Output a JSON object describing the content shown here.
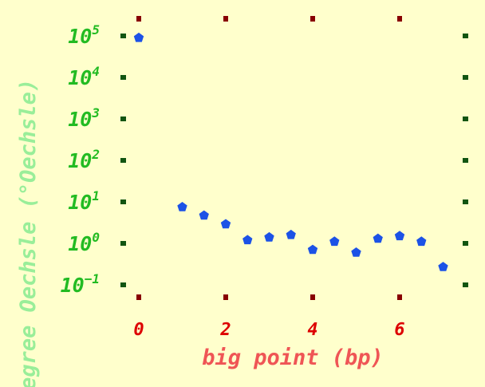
{
  "chart_data": {
    "type": "scatter",
    "title": "",
    "xlabel": "big point (bp)",
    "ylabel": "degree Oechsle (°Oechsle)",
    "x_ticks": [
      "0",
      "2",
      "4",
      "6"
    ],
    "x_tick_values": [
      0,
      2,
      4,
      6
    ],
    "y_ticks": [
      {
        "base": "10",
        "exp": "5",
        "value": 100000
      },
      {
        "base": "10",
        "exp": "4",
        "value": 10000
      },
      {
        "base": "10",
        "exp": "3",
        "value": 1000
      },
      {
        "base": "10",
        "exp": "2",
        "value": 100
      },
      {
        "base": "10",
        "exp": "1",
        "value": 10
      },
      {
        "base": "10",
        "exp": "0",
        "value": 1
      },
      {
        "base": "10",
        "exp": "−1",
        "value": 0.1
      }
    ],
    "y_scale": "log",
    "xlim": [
      0,
      7.5
    ],
    "ylim": [
      0.06,
      200000
    ],
    "grid": false,
    "series": [
      {
        "x": [
          0,
          1,
          1.5,
          2,
          2.5,
          3,
          3.5,
          4,
          4.5,
          5,
          5.5,
          6,
          6.5,
          7
        ],
        "y": [
          90000,
          7.5,
          4.7,
          2.9,
          1.2,
          1.4,
          1.6,
          0.7,
          1.1,
          0.6,
          1.3,
          1.5,
          1.1,
          0.27
        ]
      }
    ],
    "colors": {
      "background": "#ffffcc",
      "points": "#1c52e6",
      "x_labels": "#dd0000",
      "x_title": "#ef5555",
      "y_labels": "#22bb22",
      "y_title": "#99ee99",
      "y_tick_marks": "#115511",
      "x_tick_marks": "#880000"
    }
  }
}
